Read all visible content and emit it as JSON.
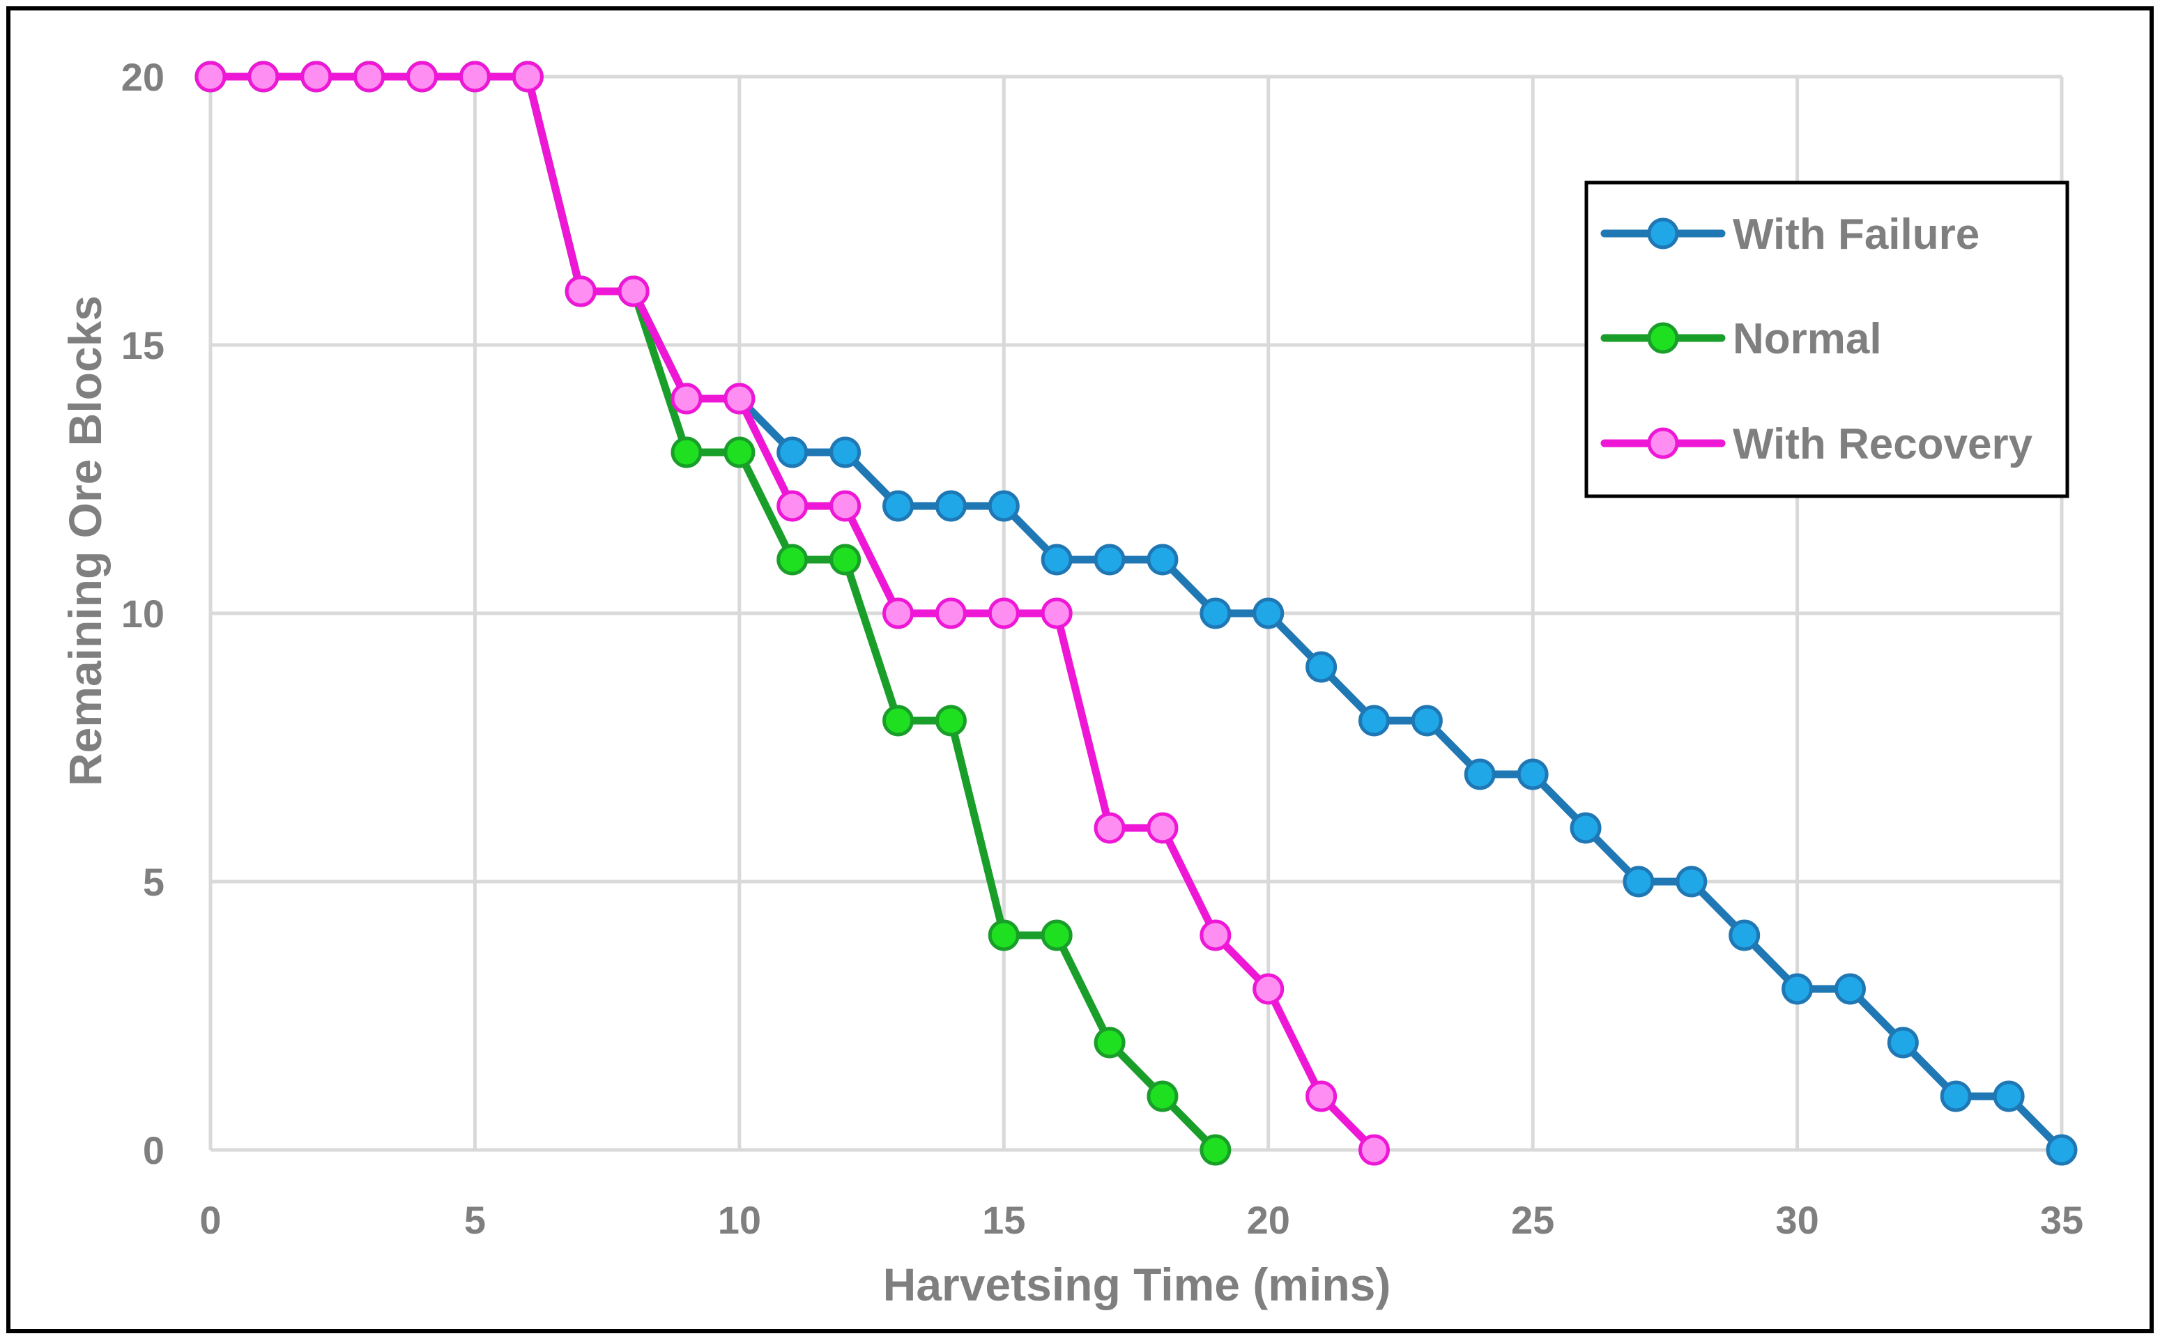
{
  "chart_data": {
    "type": "line",
    "title": "",
    "xlabel": "Harvetsing Time (mins)",
    "ylabel": "Remaining Ore Blocks",
    "xlim": [
      0,
      35
    ],
    "ylim": [
      0,
      20
    ],
    "xticks": [
      0,
      5,
      10,
      15,
      20,
      25,
      30,
      35
    ],
    "yticks": [
      0,
      5,
      10,
      15,
      20
    ],
    "grid": true,
    "legend_position": "top-right",
    "series": [
      {
        "name": "With Failure",
        "color": "#1f77b4",
        "marker_color": "#1fa7e8",
        "x": [
          0,
          1,
          2,
          3,
          4,
          5,
          6,
          7,
          8,
          9,
          10,
          11,
          12,
          13,
          14,
          15,
          16,
          17,
          18,
          19,
          20,
          21,
          22,
          23,
          24,
          25,
          26,
          27,
          28,
          29,
          30,
          31,
          32,
          33,
          34,
          35
        ],
        "values": [
          20,
          20,
          20,
          20,
          20,
          20,
          20,
          16,
          16,
          14,
          14,
          13,
          13,
          12,
          12,
          12,
          11,
          11,
          11,
          10,
          10,
          9,
          8,
          8,
          7,
          7,
          6,
          5,
          5,
          4,
          3,
          3,
          2,
          1,
          1,
          0
        ]
      },
      {
        "name": "Normal",
        "color": "#1a9e2a",
        "marker_color": "#1fe020",
        "x": [
          0,
          1,
          2,
          3,
          4,
          5,
          6,
          7,
          8,
          9,
          10,
          11,
          12,
          13,
          14,
          15,
          16,
          17,
          18,
          19
        ],
        "values": [
          20,
          20,
          20,
          20,
          20,
          20,
          20,
          16,
          16,
          13,
          13,
          11,
          11,
          8,
          8,
          4,
          4,
          2,
          1,
          0
        ]
      },
      {
        "name": "With Recovery",
        "color": "#ee17d6",
        "marker_color": "#ff8ef2",
        "x": [
          0,
          1,
          2,
          3,
          4,
          5,
          6,
          7,
          8,
          9,
          10,
          11,
          12,
          13,
          14,
          15,
          16,
          17,
          18,
          19,
          20,
          21,
          22
        ],
        "values": [
          20,
          20,
          20,
          20,
          20,
          20,
          20,
          16,
          16,
          14,
          14,
          12,
          12,
          10,
          10,
          10,
          10,
          6,
          6,
          4,
          3,
          1,
          0
        ]
      }
    ]
  }
}
